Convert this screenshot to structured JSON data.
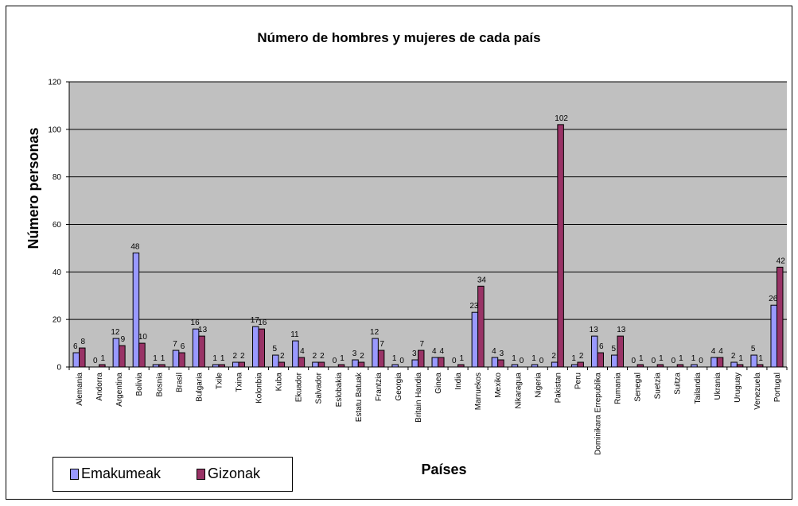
{
  "chart_data": {
    "type": "bar",
    "title": "Número de hombres y mujeres de cada país",
    "xlabel": "Países",
    "ylabel": "Número personas",
    "ylim": [
      0,
      120
    ],
    "yticks": [
      0,
      20,
      40,
      60,
      80,
      100,
      120
    ],
    "grid": true,
    "legend_position": "bottom-left",
    "categories": [
      "Alemania",
      "Andorra",
      "Argentina",
      "Bolivia",
      "Bosnia",
      "Brasil",
      "Bulgaria",
      "Txile",
      "Txina",
      "Kolonbia",
      "Kuba",
      "Ekuador",
      "Salvador",
      "Eslobakia",
      "Estatu Batuak",
      "Frantzia",
      "Georgia",
      "Britain Handia",
      "Ginea",
      "India",
      "Marruekos",
      "Mexiko",
      "Nikaragua",
      "Nigeria",
      "Pakistan",
      "Peru",
      "Dominikara Errepublika",
      "Rumania",
      "Senegal",
      "Suetzia",
      "Suitza",
      "Tailandia",
      "Ukrania",
      "Uruguay",
      "Venezuela",
      "Portugal"
    ],
    "series": [
      {
        "name": "Emakumeak",
        "color": "#9999ff",
        "values": [
          6,
          0,
          12,
          48,
          1,
          7,
          16,
          1,
          2,
          17,
          5,
          11,
          2,
          0,
          3,
          12,
          1,
          3,
          4,
          0,
          23,
          4,
          1,
          1,
          2,
          1,
          13,
          5,
          0,
          0,
          0,
          1,
          4,
          2,
          5,
          26
        ]
      },
      {
        "name": "Gizonak",
        "color": "#993366",
        "values": [
          8,
          1,
          9,
          10,
          1,
          6,
          13,
          1,
          2,
          16,
          2,
          4,
          2,
          1,
          2,
          7,
          0,
          7,
          4,
          1,
          34,
          3,
          0,
          0,
          102,
          2,
          6,
          13,
          1,
          1,
          1,
          0,
          4,
          1,
          1,
          42
        ]
      }
    ]
  },
  "colors": {
    "plot_background": "#c0c0c0",
    "gridline": "#000000",
    "bar_outline": "#000000"
  }
}
